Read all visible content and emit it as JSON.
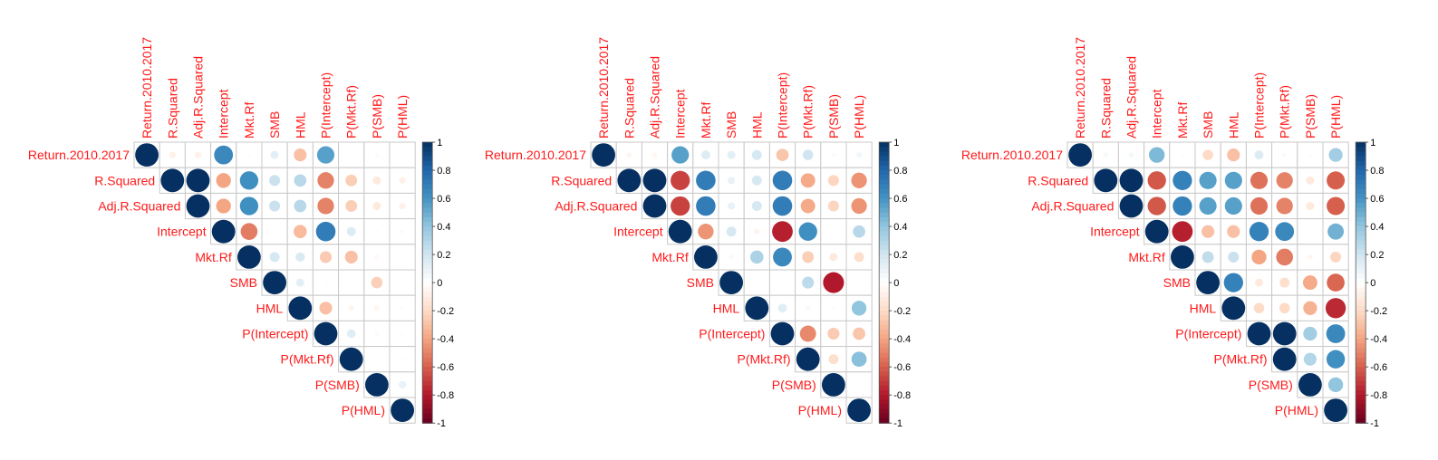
{
  "chart_data": [
    {
      "type": "heatmap",
      "variables": [
        "Return.2010.2017",
        "R.Squared",
        "Adj.R.Squared",
        "Intercept",
        "Mkt.Rf",
        "SMB",
        "HML",
        "P(Intercept)",
        "P(Mkt.Rf)",
        "P(SMB)",
        "P(HML)"
      ],
      "matrix_type": "upper",
      "values": [
        [
          1,
          -0.08,
          -0.08,
          0.65,
          -0.02,
          0.12,
          -0.3,
          0.55,
          0,
          -0.03,
          0
        ],
        [
          null,
          1,
          1,
          -0.4,
          0.62,
          0.22,
          0.28,
          -0.5,
          -0.25,
          -0.12,
          -0.08
        ],
        [
          null,
          null,
          1,
          -0.4,
          0.62,
          0.22,
          0.28,
          -0.5,
          -0.25,
          -0.12,
          -0.08
        ],
        [
          null,
          null,
          null,
          1,
          -0.52,
          0,
          -0.32,
          0.7,
          0.15,
          -0.02,
          -0.03
        ],
        [
          null,
          null,
          null,
          null,
          1,
          0.18,
          0.16,
          -0.26,
          -0.3,
          -0.04,
          0
        ],
        [
          null,
          null,
          null,
          null,
          null,
          1,
          0.12,
          -0.02,
          0,
          -0.24,
          0
        ],
        [
          null,
          null,
          null,
          null,
          null,
          null,
          1,
          -0.3,
          -0.06,
          -0.05,
          -0.02
        ],
        [
          null,
          null,
          null,
          null,
          null,
          null,
          null,
          1,
          0.14,
          -0.03,
          -0.02
        ],
        [
          null,
          null,
          null,
          null,
          null,
          null,
          null,
          null,
          1,
          0,
          -0.02
        ],
        [
          null,
          null,
          null,
          null,
          null,
          null,
          null,
          null,
          null,
          1,
          0.1
        ],
        [
          null,
          null,
          null,
          null,
          null,
          null,
          null,
          null,
          null,
          null,
          1
        ]
      ],
      "color_scale": {
        "min": -1,
        "max": 1,
        "ticks": [
          "1",
          "0.8",
          "0.6",
          "0.4",
          "0.2",
          "0",
          "-0.2",
          "-0.4",
          "-0.6",
          "-0.8",
          "-1"
        ]
      },
      "colors": {
        "negative": "#67001f",
        "mid": "#ffffff",
        "positive": "#053061"
      }
    },
    {
      "type": "heatmap",
      "variables": [
        "Return.2010.2017",
        "R.Squared",
        "Adj.R.Squared",
        "Intercept",
        "Mkt.Rf",
        "SMB",
        "HML",
        "P(Intercept)",
        "P(Mkt.Rf)",
        "P(SMB)",
        "P(HML)"
      ],
      "matrix_type": "upper",
      "values": [
        [
          1,
          -0.05,
          -0.05,
          0.55,
          0.15,
          0.12,
          0.18,
          -0.28,
          0.2,
          -0.03,
          0.06
        ],
        [
          null,
          1,
          1,
          -0.68,
          0.7,
          0.1,
          0.18,
          0.7,
          -0.38,
          -0.22,
          -0.45
        ],
        [
          null,
          null,
          1,
          -0.68,
          0.7,
          0.1,
          0.18,
          0.7,
          -0.38,
          -0.22,
          -0.45
        ],
        [
          null,
          null,
          null,
          1,
          -0.45,
          0.18,
          -0.06,
          -0.78,
          0.62,
          0,
          0.28
        ],
        [
          null,
          null,
          null,
          null,
          1,
          0.04,
          0.32,
          0.65,
          -0.25,
          -0.12,
          -0.18
        ],
        [
          null,
          null,
          null,
          null,
          null,
          1,
          0,
          0,
          0.26,
          -0.8,
          0
        ],
        [
          null,
          null,
          null,
          null,
          null,
          null,
          1,
          0.14,
          0.04,
          -0.02,
          0.4
        ],
        [
          null,
          null,
          null,
          null,
          null,
          null,
          null,
          1,
          -0.48,
          -0.26,
          -0.28
        ],
        [
          null,
          null,
          null,
          null,
          null,
          null,
          null,
          null,
          1,
          -0.18,
          0.42
        ],
        [
          null,
          null,
          null,
          null,
          null,
          null,
          null,
          null,
          null,
          1,
          0
        ],
        [
          null,
          null,
          null,
          null,
          null,
          null,
          null,
          null,
          null,
          null,
          1
        ]
      ],
      "color_scale": {
        "min": -1,
        "max": 1,
        "ticks": [
          "1",
          "0.8",
          "0.6",
          "0.4",
          "0.2",
          "0",
          "-0.2",
          "-0.4",
          "-0.6",
          "-0.8",
          "-1"
        ]
      },
      "colors": {
        "negative": "#67001f",
        "mid": "#ffffff",
        "positive": "#053061"
      }
    },
    {
      "type": "heatmap",
      "variables": [
        "Return.2010.2017",
        "R.Squared",
        "Adj.R.Squared",
        "Intercept",
        "Mkt.Rf",
        "SMB",
        "HML",
        "P(Intercept)",
        "P(Mkt.Rf)",
        "P(SMB)",
        "P(HML)"
      ],
      "matrix_type": "upper",
      "values": [
        [
          1,
          0.05,
          0.05,
          0.45,
          0.02,
          -0.2,
          -0.3,
          0.15,
          0.03,
          0.02,
          0.35
        ],
        [
          null,
          1,
          1,
          -0.62,
          0.68,
          0.55,
          0.55,
          -0.55,
          -0.5,
          -0.12,
          -0.6
        ],
        [
          null,
          null,
          1,
          -0.62,
          0.68,
          0.55,
          0.55,
          -0.55,
          -0.5,
          -0.12,
          -0.6
        ],
        [
          null,
          null,
          null,
          1,
          -0.78,
          -0.3,
          -0.3,
          0.68,
          0.65,
          0,
          0.48
        ],
        [
          null,
          null,
          null,
          null,
          1,
          0.25,
          0.22,
          -0.4,
          -0.52,
          -0.05,
          -0.22
        ],
        [
          null,
          null,
          null,
          null,
          null,
          1,
          0.68,
          -0.12,
          -0.18,
          -0.38,
          -0.58
        ],
        [
          null,
          null,
          null,
          null,
          null,
          null,
          1,
          -0.2,
          -0.2,
          -0.35,
          -0.75
        ],
        [
          null,
          null,
          null,
          null,
          null,
          null,
          null,
          1,
          1,
          0.35,
          0.65
        ],
        [
          null,
          null,
          null,
          null,
          null,
          null,
          null,
          null,
          1,
          0.3,
          0.62
        ],
        [
          null,
          null,
          null,
          null,
          null,
          null,
          null,
          null,
          null,
          1,
          0.4
        ],
        [
          null,
          null,
          null,
          null,
          null,
          null,
          null,
          null,
          null,
          null,
          1
        ]
      ],
      "color_scale": {
        "min": -1,
        "max": 1,
        "ticks": [
          "1",
          "0.8",
          "0.6",
          "0.4",
          "0.2",
          "0",
          "-0.2",
          "-0.4",
          "-0.6",
          "-0.8",
          "-1"
        ]
      },
      "colors": {
        "negative": "#67001f",
        "mid": "#ffffff",
        "positive": "#053061"
      }
    }
  ]
}
